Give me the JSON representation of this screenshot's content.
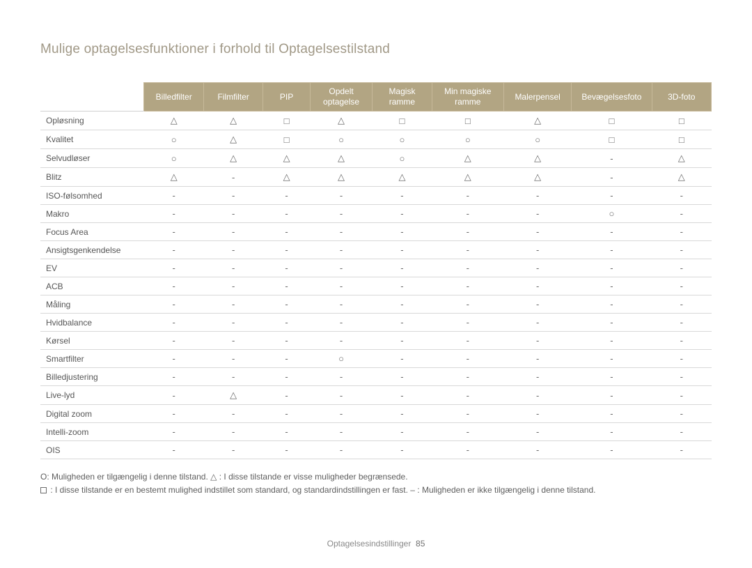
{
  "title": "Mulige optagelsesfunktioner i forhold til Optagelsestilstand",
  "columns": [
    "Billedfilter",
    "Filmfilter",
    "PIP",
    "Opdelt\noptagelse",
    "Magisk\nramme",
    "Min magiske\nramme",
    "Malerpensel",
    "Bevægelsesfoto",
    "3D-foto"
  ],
  "column_widths_pct": [
    15,
    8.6,
    8.6,
    6.8,
    9.0,
    8.6,
    10.4,
    9.8,
    11.6,
    8.6
  ],
  "symbols": {
    "O": "○",
    "T": "△",
    "S": "□",
    "D": "-"
  },
  "rows": [
    {
      "label": "Opløsning",
      "cells": [
        "T",
        "T",
        "S",
        "T",
        "S",
        "S",
        "T",
        "S",
        "S"
      ]
    },
    {
      "label": "Kvalitet",
      "cells": [
        "O",
        "T",
        "S",
        "O",
        "O",
        "O",
        "O",
        "S",
        "S"
      ]
    },
    {
      "label": "Selvudløser",
      "cells": [
        "O",
        "T",
        "T",
        "T",
        "O",
        "T",
        "T",
        "D",
        "T"
      ]
    },
    {
      "label": "Blitz",
      "cells": [
        "T",
        "D",
        "T",
        "T",
        "T",
        "T",
        "T",
        "D",
        "T"
      ]
    },
    {
      "label": "ISO-følsomhed",
      "cells": [
        "D",
        "D",
        "D",
        "D",
        "D",
        "D",
        "D",
        "D",
        "D"
      ]
    },
    {
      "label": "Makro",
      "cells": [
        "D",
        "D",
        "D",
        "D",
        "D",
        "D",
        "D",
        "O",
        "D"
      ]
    },
    {
      "label": "Focus Area",
      "cells": [
        "D",
        "D",
        "D",
        "D",
        "D",
        "D",
        "D",
        "D",
        "D"
      ]
    },
    {
      "label": "Ansigtsgenkendelse",
      "cells": [
        "D",
        "D",
        "D",
        "D",
        "D",
        "D",
        "D",
        "D",
        "D"
      ]
    },
    {
      "label": "EV",
      "cells": [
        "D",
        "D",
        "D",
        "D",
        "D",
        "D",
        "D",
        "D",
        "D"
      ]
    },
    {
      "label": "ACB",
      "cells": [
        "D",
        "D",
        "D",
        "D",
        "D",
        "D",
        "D",
        "D",
        "D"
      ]
    },
    {
      "label": "Måling",
      "cells": [
        "D",
        "D",
        "D",
        "D",
        "D",
        "D",
        "D",
        "D",
        "D"
      ]
    },
    {
      "label": "Hvidbalance",
      "cells": [
        "D",
        "D",
        "D",
        "D",
        "D",
        "D",
        "D",
        "D",
        "D"
      ]
    },
    {
      "label": "Kørsel",
      "cells": [
        "D",
        "D",
        "D",
        "D",
        "D",
        "D",
        "D",
        "D",
        "D"
      ]
    },
    {
      "label": "Smartfilter",
      "cells": [
        "D",
        "D",
        "D",
        "O",
        "D",
        "D",
        "D",
        "D",
        "D"
      ]
    },
    {
      "label": "Billedjustering",
      "cells": [
        "D",
        "D",
        "D",
        "D",
        "D",
        "D",
        "D",
        "D",
        "D"
      ]
    },
    {
      "label": "Live-lyd",
      "cells": [
        "D",
        "T",
        "D",
        "D",
        "D",
        "D",
        "D",
        "D",
        "D"
      ]
    },
    {
      "label": "Digital zoom",
      "cells": [
        "D",
        "D",
        "D",
        "D",
        "D",
        "D",
        "D",
        "D",
        "D"
      ]
    },
    {
      "label": "Intelli-zoom",
      "cells": [
        "D",
        "D",
        "D",
        "D",
        "D",
        "D",
        "D",
        "D",
        "D"
      ]
    },
    {
      "label": "OIS",
      "cells": [
        "D",
        "D",
        "D",
        "D",
        "D",
        "D",
        "D",
        "D",
        "D"
      ]
    }
  ],
  "legend": {
    "line1_prefix": "O: Muligheden er tilgængelig i denne tilstand.   ",
    "line1_tri": "△",
    "line1_rest": " : I disse tilstande er visse muligheder begrænsede.",
    "line2_rest": " : I disse tilstande er en bestemt mulighed indstillet som standard, og standardindstillingen er fast.   – : Muligheden er ikke tilgængelig i denne tilstand."
  },
  "footer": {
    "label": "Optagelsesindstillinger",
    "page": "85"
  },
  "style": {
    "header_bg": "#b2a583",
    "header_border": "#c7b99a",
    "header_text": "#ffffff",
    "title_color": "#a09886",
    "row_border": "#d8d8d8",
    "cell_text": "#6a6a6a",
    "font_size_body": 12,
    "font_size_title": 19
  }
}
